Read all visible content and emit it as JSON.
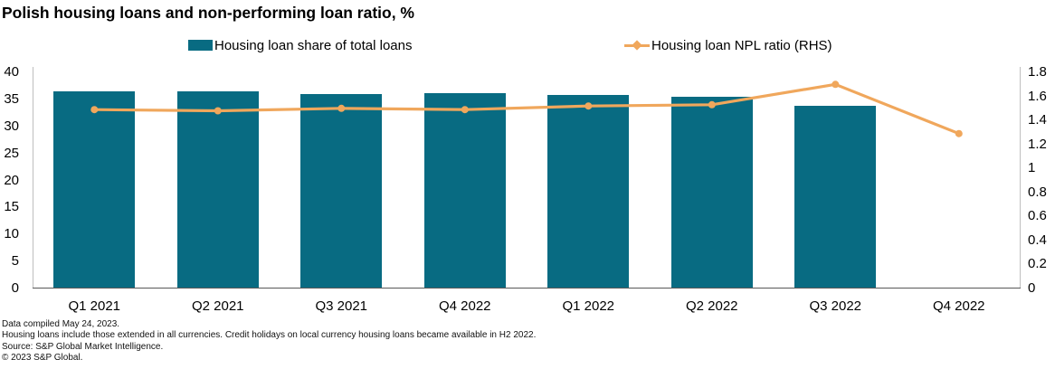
{
  "title": "Polish housing loans and non-performing loan ratio, %",
  "legend": {
    "bar_label": "Housing loan share of total loans",
    "line_label": "Housing loan NPL ratio (RHS)"
  },
  "colors": {
    "bar": "#086b82",
    "line": "#f0a75c",
    "axis_side": "#bfbfbf",
    "axis_bottom": "#595959"
  },
  "chart_data": {
    "type": "bar+line",
    "title": "Polish housing loans and non-performing loan ratio, %",
    "categories": [
      "Q1 2021",
      "Q2 2021",
      "Q3 2021",
      "Q4 2022",
      "Q1 2022",
      "Q2 2022",
      "Q3 2022",
      "Q4 2022"
    ],
    "series": [
      {
        "name": "Housing loan share of total loans",
        "type": "bar",
        "axis": "left",
        "values": [
          36.4,
          36.3,
          35.9,
          36.0,
          35.7,
          35.3,
          33.6,
          null
        ]
      },
      {
        "name": "Housing loan NPL ratio (RHS)",
        "type": "line",
        "axis": "right",
        "values": [
          1.49,
          1.48,
          1.5,
          1.49,
          1.52,
          1.53,
          1.7,
          1.29
        ]
      }
    ],
    "left_axis": {
      "min": 0,
      "max": 40,
      "ticks": [
        0,
        5,
        10,
        15,
        20,
        25,
        30,
        35,
        40
      ]
    },
    "right_axis": {
      "min": 0,
      "max": 1.8,
      "ticks": [
        0,
        0.2,
        0.4,
        0.6,
        0.8,
        1,
        1.2,
        1.4,
        1.6,
        1.8
      ]
    },
    "grid": false,
    "legend_position": "top"
  },
  "footer": {
    "lines": [
      "Data compiled May 24, 2023.",
      "Housing loans include those extended in all currencies. Credit holidays on local currency housing loans became available in H2 2022.",
      "Source: S&P Global Market Intelligence.",
      "© 2023 S&P Global."
    ]
  }
}
